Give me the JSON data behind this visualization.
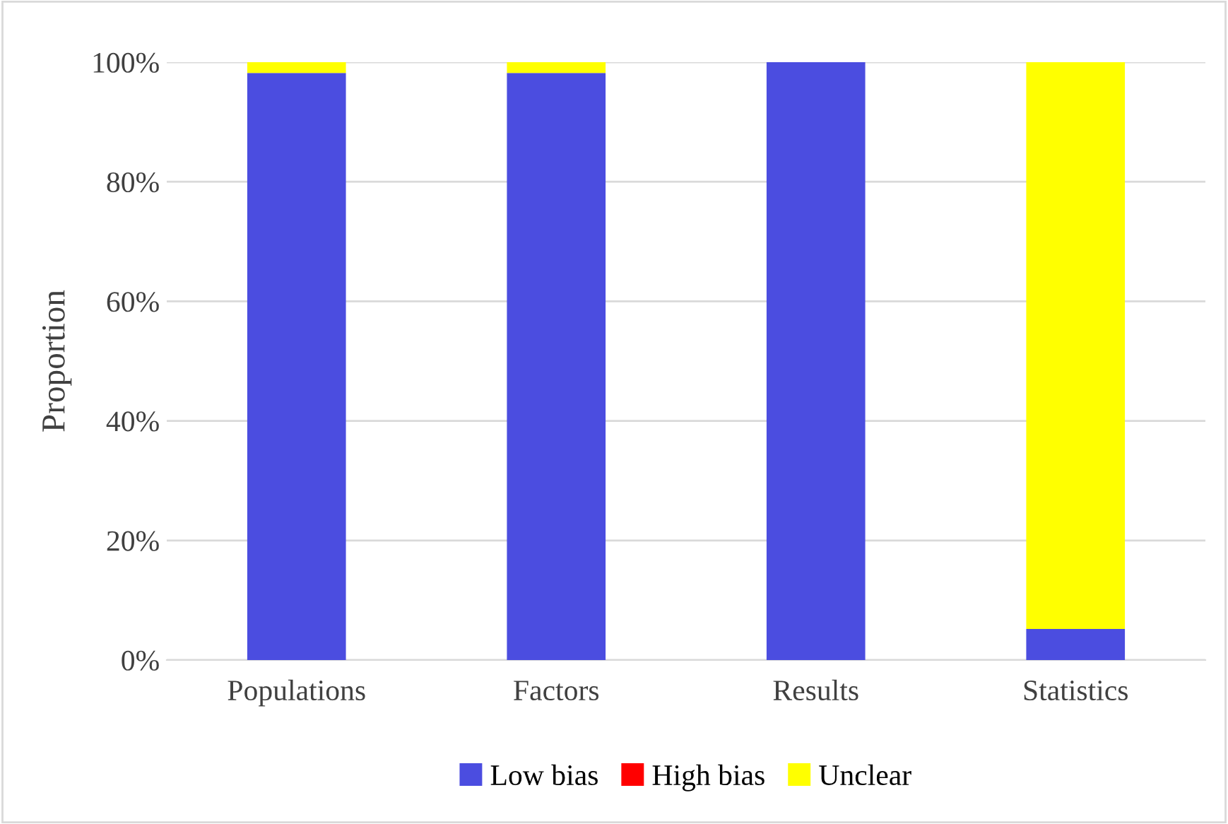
{
  "chart_data": {
    "type": "bar",
    "stacked": true,
    "ylabel": "Proportion",
    "categories": [
      "Populations",
      "Factors",
      "Results",
      "Statistics"
    ],
    "series": [
      {
        "name": "Low bias",
        "color": "#4b4de0",
        "values": [
          98.2,
          98.2,
          100,
          5.2
        ]
      },
      {
        "name": "High bias",
        "color": "#ff0000",
        "values": [
          0,
          0,
          0,
          0
        ]
      },
      {
        "name": "Unclear",
        "color": "#ffff00",
        "values": [
          1.8,
          1.8,
          0,
          94.8
        ]
      }
    ],
    "ylim": [
      0,
      100
    ],
    "yticks": [
      {
        "value": 0,
        "label": "0%"
      },
      {
        "value": 20,
        "label": "20%"
      },
      {
        "value": 40,
        "label": "40%"
      },
      {
        "value": 60,
        "label": "60%"
      },
      {
        "value": 80,
        "label": "80%"
      },
      {
        "value": 100,
        "label": "100%"
      }
    ],
    "grid": "y",
    "legend": "bottom"
  }
}
